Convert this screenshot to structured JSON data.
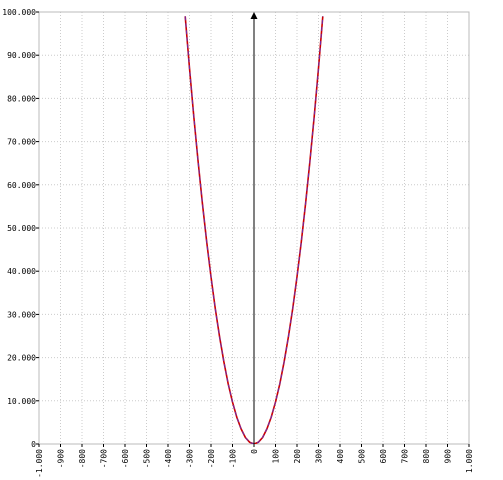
{
  "chart_data": {
    "type": "line",
    "title": "",
    "xlabel": "",
    "ylabel": "",
    "xlim": [
      -1000,
      1000
    ],
    "ylim": [
      0,
      100000
    ],
    "grid": true,
    "x_ticks": [
      -1000,
      -900,
      -800,
      -700,
      -600,
      -500,
      -400,
      -300,
      -200,
      -100,
      0,
      100,
      200,
      300,
      400,
      500,
      600,
      700,
      800,
      900,
      1000
    ],
    "x_tick_labels": [
      "-1.000",
      "-900",
      "-800",
      "-700",
      "-600",
      "-500",
      "-400",
      "-300",
      "-200",
      "-100",
      "0",
      "100",
      "200",
      "300",
      "400",
      "500",
      "600",
      "700",
      "800",
      "900",
      "1.000"
    ],
    "y_ticks": [
      0,
      10000,
      20000,
      30000,
      40000,
      50000,
      60000,
      70000,
      80000,
      90000,
      100000
    ],
    "y_tick_labels": [
      "0",
      "10.000",
      "20.000",
      "30.000",
      "40.000",
      "50.000",
      "60.000",
      "70.000",
      "80.000",
      "90.000",
      "100.000"
    ],
    "y_axis_at_x": 0,
    "series": [
      {
        "color": "#cc0000",
        "style": "solid",
        "x": [
          -320,
          -300,
          -280,
          -260,
          -240,
          -220,
          -200,
          -180,
          -160,
          -140,
          -120,
          -100,
          -80,
          -60,
          -40,
          -20,
          0,
          20,
          40,
          60,
          80,
          100,
          120,
          140,
          160,
          180,
          200,
          220,
          240,
          260,
          280,
          300,
          320
        ],
        "y": [
          99000,
          87000,
          75800,
          65400,
          55700,
          46800,
          38700,
          31300,
          24800,
          19000,
          13900,
          9700,
          6200,
          3500,
          1500,
          400,
          0,
          400,
          1500,
          3500,
          6200,
          9700,
          13900,
          19000,
          24800,
          31300,
          38700,
          46800,
          55700,
          65400,
          75800,
          87000,
          99000
        ]
      },
      {
        "color": "#6a2cb0",
        "style": "dashed",
        "x": [
          -320,
          -300,
          -280,
          -260,
          -240,
          -220,
          -200,
          -180,
          -160,
          -140,
          -120,
          -100,
          -80,
          -60,
          -40,
          -20,
          0,
          20,
          40,
          60,
          80,
          100,
          120,
          140,
          160,
          180,
          200,
          220,
          240,
          260,
          280,
          300,
          320
        ],
        "y": [
          99000,
          87000,
          75800,
          65400,
          55700,
          46800,
          38700,
          31300,
          24800,
          19000,
          13900,
          9700,
          6200,
          3500,
          1500,
          400,
          0,
          400,
          1500,
          3500,
          6200,
          9700,
          13900,
          19000,
          24800,
          31300,
          38700,
          46800,
          55700,
          65400,
          75800,
          87000,
          99000
        ]
      }
    ]
  }
}
